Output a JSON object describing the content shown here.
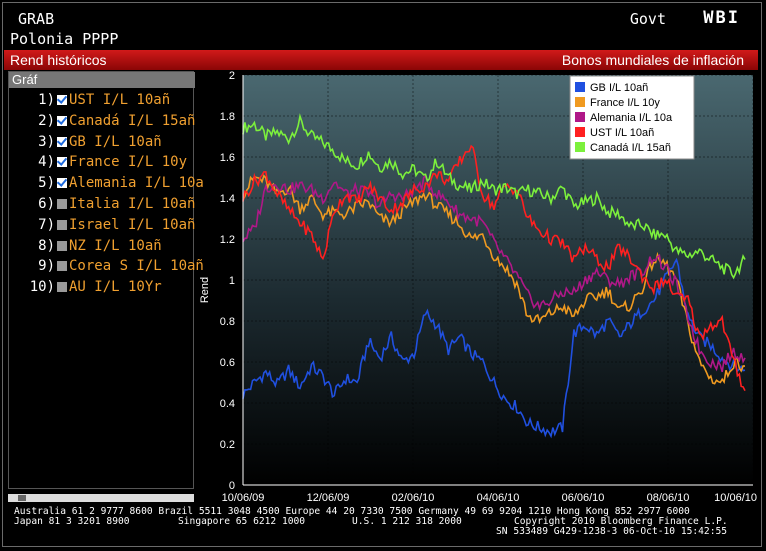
{
  "header": {
    "screen": "GRAB",
    "user": "Polonia PPPP",
    "market": "Govt",
    "function": "WBI"
  },
  "bar": {
    "left": "Rend históricos",
    "right": "Bonos mundiales de inflación"
  },
  "panel": {
    "title": "Gráf",
    "items": [
      {
        "num": "1)",
        "label": "UST I/L 10añ",
        "checked": true
      },
      {
        "num": "2)",
        "label": "Canadá I/L 15añ",
        "checked": true
      },
      {
        "num": "3)",
        "label": "GB I/L 10añ",
        "checked": true
      },
      {
        "num": "4)",
        "label": "France I/L 10y",
        "checked": true
      },
      {
        "num": "5)",
        "label": "Alemania I/L 10a",
        "checked": true
      },
      {
        "num": "6)",
        "label": "Italia I/L 10añ",
        "checked": false
      },
      {
        "num": "7)",
        "label": "Israel I/L 10añ",
        "checked": false
      },
      {
        "num": "8)",
        "label": "NZ I/L 10añ",
        "checked": false
      },
      {
        "num": "9)",
        "label": "Corea S I/L 10añ",
        "checked": false
      },
      {
        "num": "10)",
        "label": "AU I/L 10Yr",
        "checked": false
      }
    ]
  },
  "footer": {
    "line1": "Australia 61 2 9777 8600 Brazil 5511 3048 4500 Europe 44 20 7330 7500 Germany 49 69 9204 1210 Hong Kong 852 2977 6000",
    "line2a": "Japan 81 3 3201 8900",
    "line2b": "Singapore 65 6212 1000",
    "line2c": "U.S. 1 212 318 2000",
    "line2d": "Copyright 2010 Bloomberg Finance L.P.",
    "line3": "SN 533489 G429-1238-3 06-Oct-10 15:42:55"
  },
  "chart_data": {
    "type": "line",
    "ylabel": "Rend",
    "ylim": [
      0,
      2
    ],
    "yticks": [
      "0",
      "0.2",
      "0.4",
      "0.6",
      "0.8",
      "1",
      "1.2",
      "1.4",
      "1.6",
      "1.8",
      "2"
    ],
    "xticks": [
      "10/06/09",
      "12/06/09",
      "02/06/10",
      "04/06/10",
      "06/06/10",
      "08/06/10",
      "10/06/10"
    ],
    "legend_position": "top-right",
    "series": [
      {
        "name": "Canadá I/L 15añ",
        "color": "#7cf03c",
        "values": [
          1.74,
          1.76,
          1.7,
          1.72,
          1.69,
          1.77,
          1.7,
          1.67,
          1.63,
          1.58,
          1.56,
          1.62,
          1.55,
          1.58,
          1.52,
          1.54,
          1.49,
          1.58,
          1.5,
          1.46,
          1.44,
          1.48,
          1.44,
          1.45,
          1.42,
          1.44,
          1.42,
          1.4,
          1.45,
          1.36,
          1.38,
          1.4,
          1.33,
          1.32,
          1.26,
          1.27,
          1.22,
          1.22,
          1.14,
          1.12,
          1.14,
          1.1,
          1.06,
          1.03,
          1.1
        ]
      },
      {
        "name": "GB I/L 10añ",
        "color": "#2050e0",
        "values": [
          0.44,
          0.5,
          0.55,
          0.49,
          0.56,
          0.48,
          0.58,
          0.53,
          0.44,
          0.52,
          0.5,
          0.7,
          0.62,
          0.72,
          0.6,
          0.64,
          0.84,
          0.78,
          0.66,
          0.72,
          0.64,
          0.6,
          0.5,
          0.42,
          0.38,
          0.3,
          0.28,
          0.26,
          0.28,
          0.74,
          0.78,
          0.73,
          0.8,
          0.72,
          0.79,
          0.85,
          0.9,
          1.0,
          1.1,
          0.82,
          0.72,
          0.68,
          0.62,
          0.58,
          0.56
        ]
      },
      {
        "name": "France I/L 10y",
        "color": "#f09a20",
        "values": [
          1.42,
          1.5,
          1.48,
          1.42,
          1.45,
          1.35,
          1.4,
          1.32,
          1.33,
          1.32,
          1.36,
          1.38,
          1.3,
          1.28,
          1.34,
          1.38,
          1.42,
          1.36,
          1.32,
          1.27,
          1.2,
          1.22,
          1.12,
          1.06,
          0.98,
          0.82,
          0.8,
          0.84,
          0.87,
          0.82,
          0.9,
          0.92,
          0.95,
          0.85,
          0.88,
          0.96,
          1.1,
          1.08,
          1.0,
          0.78,
          0.6,
          0.52,
          0.5,
          0.6,
          0.58
        ]
      },
      {
        "name": "Alemania I/L 10a",
        "color": "#b01888",
        "values": [
          1.2,
          1.25,
          1.45,
          1.47,
          1.44,
          1.46,
          1.44,
          1.4,
          1.48,
          1.42,
          1.44,
          1.42,
          1.36,
          1.42,
          1.4,
          1.44,
          1.48,
          1.42,
          1.38,
          1.32,
          1.3,
          1.28,
          1.18,
          1.1,
          1.02,
          0.92,
          0.87,
          0.9,
          0.94,
          0.94,
          1.0,
          1.04,
          1.0,
          0.98,
          1.02,
          1.04,
          1.12,
          1.06,
          0.98,
          0.82,
          0.66,
          0.6,
          0.58,
          0.65,
          0.62
        ]
      },
      {
        "name": "UST I/L 10añ",
        "color": "#ff2020",
        "values": [
          1.4,
          1.48,
          1.52,
          1.42,
          1.34,
          1.28,
          1.22,
          1.1,
          1.34,
          1.42,
          1.38,
          1.46,
          1.4,
          1.34,
          1.38,
          1.44,
          1.46,
          1.52,
          1.48,
          1.58,
          1.66,
          1.42,
          1.36,
          1.46,
          1.44,
          1.3,
          1.24,
          1.2,
          1.18,
          1.1,
          1.16,
          1.1,
          1.06,
          1.16,
          1.1,
          1.02,
          0.96,
          1.0,
          0.92,
          0.9,
          0.72,
          0.78,
          0.8,
          0.6,
          0.46
        ]
      }
    ]
  }
}
